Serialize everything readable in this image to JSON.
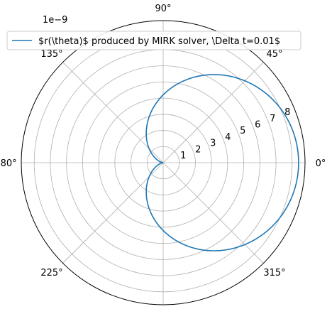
{
  "chart_data": {
    "type": "line",
    "projection": "polar",
    "offset_label": "1e−9",
    "legend": {
      "label": "$r(\\theta)$ produced by MIRK solver, \\Delta t=0.01$",
      "placement": "top-center"
    },
    "r_ticks": [
      "1",
      "2",
      "3",
      "4",
      "5",
      "6",
      "7",
      "8"
    ],
    "r_tick_values": [
      1,
      2,
      3,
      4,
      5,
      6,
      7,
      8
    ],
    "r_max": 8.8,
    "theta_ticks": [
      "0°",
      "45°",
      "90°",
      "135°",
      "180°",
      "225°",
      "270°",
      "315°"
    ],
    "theta_tick_values": [
      0,
      45,
      90,
      135,
      180,
      225,
      270,
      315
    ],
    "grid": true,
    "series": [
      {
        "name": "$r(\\theta)$ produced by MIRK solver, \\Delta t=0.01$",
        "color": "#1f77b4",
        "curve": {
          "form": "r = a + b*cos(theta)",
          "a": 4.2,
          "b": 4.2
        },
        "theta_deg": [
          0,
          10,
          20,
          30,
          40,
          50,
          60,
          70,
          80,
          90,
          100,
          110,
          120,
          130,
          140,
          150,
          160,
          170,
          180
        ],
        "r": [
          8.4,
          8.34,
          8.15,
          7.84,
          7.42,
          6.9,
          6.3,
          5.64,
          4.93,
          4.2,
          3.47,
          2.76,
          2.1,
          1.5,
          0.98,
          0.56,
          0.25,
          0.06,
          0.0
        ],
        "symmetric_about_x_axis": true
      }
    ]
  }
}
